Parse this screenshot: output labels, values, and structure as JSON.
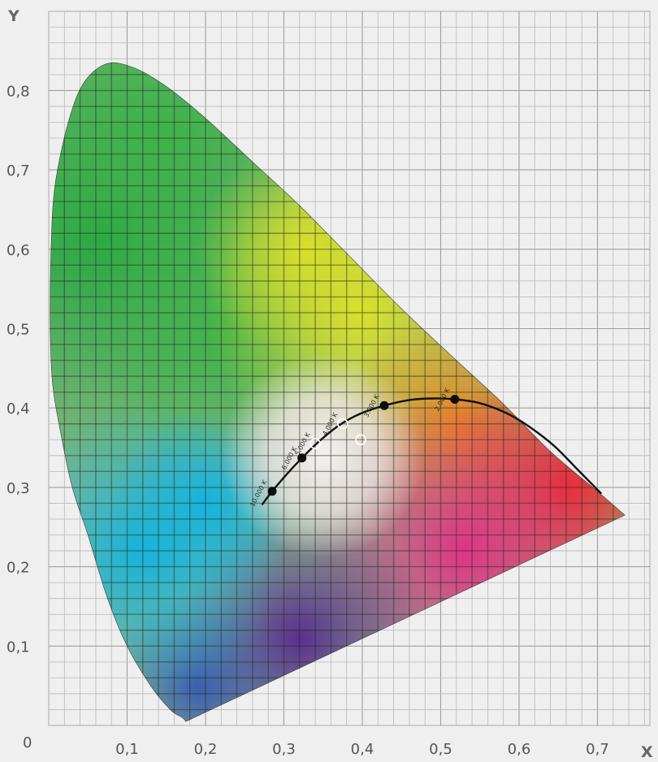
{
  "chart_data": {
    "type": "scatter",
    "title": "",
    "xlabel": "X",
    "ylabel": "Y",
    "xlim": [
      0,
      0.76
    ],
    "ylim": [
      0,
      0.9
    ],
    "grid": true,
    "x_ticks": [
      "0,1",
      "0,2",
      "0,3",
      "0,4",
      "0,5",
      "0,6",
      "0,7"
    ],
    "y_ticks": [
      "0,1",
      "0,2",
      "0,3",
      "0,4",
      "0,5",
      "0,6",
      "0,7",
      "0,8"
    ],
    "origin_label": "0",
    "spectral_locus": [
      {
        "x": 0.175,
        "y": 0.005
      },
      {
        "x": 0.17,
        "y": 0.01
      },
      {
        "x": 0.155,
        "y": 0.02
      },
      {
        "x": 0.13,
        "y": 0.05
      },
      {
        "x": 0.1,
        "y": 0.1
      },
      {
        "x": 0.075,
        "y": 0.16
      },
      {
        "x": 0.05,
        "y": 0.24
      },
      {
        "x": 0.03,
        "y": 0.3
      },
      {
        "x": 0.015,
        "y": 0.37
      },
      {
        "x": 0.005,
        "y": 0.43
      },
      {
        "x": 0.002,
        "y": 0.5
      },
      {
        "x": 0.003,
        "y": 0.6
      },
      {
        "x": 0.008,
        "y": 0.68
      },
      {
        "x": 0.025,
        "y": 0.76
      },
      {
        "x": 0.045,
        "y": 0.81
      },
      {
        "x": 0.075,
        "y": 0.834
      },
      {
        "x": 0.11,
        "y": 0.828
      },
      {
        "x": 0.15,
        "y": 0.805
      },
      {
        "x": 0.2,
        "y": 0.765
      },
      {
        "x": 0.26,
        "y": 0.71
      },
      {
        "x": 0.32,
        "y": 0.655
      },
      {
        "x": 0.38,
        "y": 0.595
      },
      {
        "x": 0.45,
        "y": 0.525
      },
      {
        "x": 0.52,
        "y": 0.46
      },
      {
        "x": 0.58,
        "y": 0.405
      },
      {
        "x": 0.64,
        "y": 0.345
      },
      {
        "x": 0.7,
        "y": 0.295
      },
      {
        "x": 0.735,
        "y": 0.265
      }
    ],
    "planckian_locus": [
      {
        "x": 0.272,
        "y": 0.278
      },
      {
        "x": 0.285,
        "y": 0.295
      },
      {
        "x": 0.305,
        "y": 0.318
      },
      {
        "x": 0.323,
        "y": 0.337
      },
      {
        "x": 0.345,
        "y": 0.358
      },
      {
        "x": 0.37,
        "y": 0.378
      },
      {
        "x": 0.398,
        "y": 0.393
      },
      {
        "x": 0.428,
        "y": 0.403
      },
      {
        "x": 0.46,
        "y": 0.41
      },
      {
        "x": 0.49,
        "y": 0.412
      },
      {
        "x": 0.518,
        "y": 0.411
      },
      {
        "x": 0.55,
        "y": 0.406
      },
      {
        "x": 0.585,
        "y": 0.393
      },
      {
        "x": 0.615,
        "y": 0.375
      },
      {
        "x": 0.645,
        "y": 0.352
      },
      {
        "x": 0.675,
        "y": 0.322
      },
      {
        "x": 0.705,
        "y": 0.292
      }
    ],
    "series": [
      {
        "points": [
          {
            "x": 0.285,
            "y": 0.295,
            "label": "10.000 K"
          },
          {
            "x": 0.323,
            "y": 0.337,
            "label": "6.000 K"
          },
          {
            "x": 0.428,
            "y": 0.403,
            "label": "3.000 K"
          },
          {
            "x": 0.518,
            "y": 0.411,
            "label": "2.000 K"
          }
        ]
      },
      {
        "points": [
          {
            "x": 0.34,
            "y": 0.355,
            "label": "5.000 K"
          },
          {
            "x": 0.375,
            "y": 0.38,
            "label": "4.000 K"
          },
          {
            "x": 0.398,
            "y": 0.36,
            "label": ""
          }
        ]
      }
    ]
  }
}
